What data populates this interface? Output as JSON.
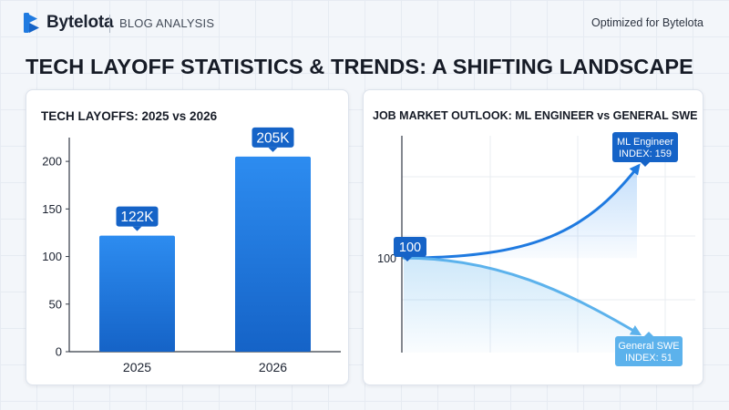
{
  "header": {
    "brand": "Bytelota",
    "section": "BLOG ANALYSIS",
    "tagline": "Optimized for Bytelota"
  },
  "page": {
    "title": "TECH LAYOFF STATISTICS & TRENDS: A SHIFTING LANDSCAPE"
  },
  "colors": {
    "accent": "#1f7ae0",
    "accent_dark": "#1563c7",
    "accent_light": "#5cb2ec",
    "text": "#1b2230",
    "axis": "#333a45"
  },
  "chart_data": [
    {
      "type": "bar",
      "title": "TECH LAYOFFS: 2025 vs 2026",
      "categories": [
        "2025",
        "2026"
      ],
      "values": [
        122,
        205
      ],
      "data_labels": [
        "122K",
        "205K"
      ],
      "yticks": [
        "0",
        "50",
        "100",
        "150",
        "200"
      ],
      "ylim": [
        0,
        225
      ],
      "xlabel": "",
      "ylabel": "",
      "grid": false
    },
    {
      "type": "line",
      "title": "JOB MARKET OUTLOOK: ML ENGINEER vs GENERAL SWE",
      "x": [
        0,
        1
      ],
      "series": [
        {
          "name": "ML Engineer",
          "values": [
            100,
            159
          ],
          "end_label": "INDEX: 159"
        },
        {
          "name": "General SWE",
          "values": [
            100,
            51
          ],
          "end_label": "INDEX: 51"
        }
      ],
      "start_label": "100",
      "yticks": [
        "100"
      ],
      "ylim": [
        38,
        180
      ],
      "xlabel": "",
      "ylabel": "",
      "grid": true
    }
  ]
}
